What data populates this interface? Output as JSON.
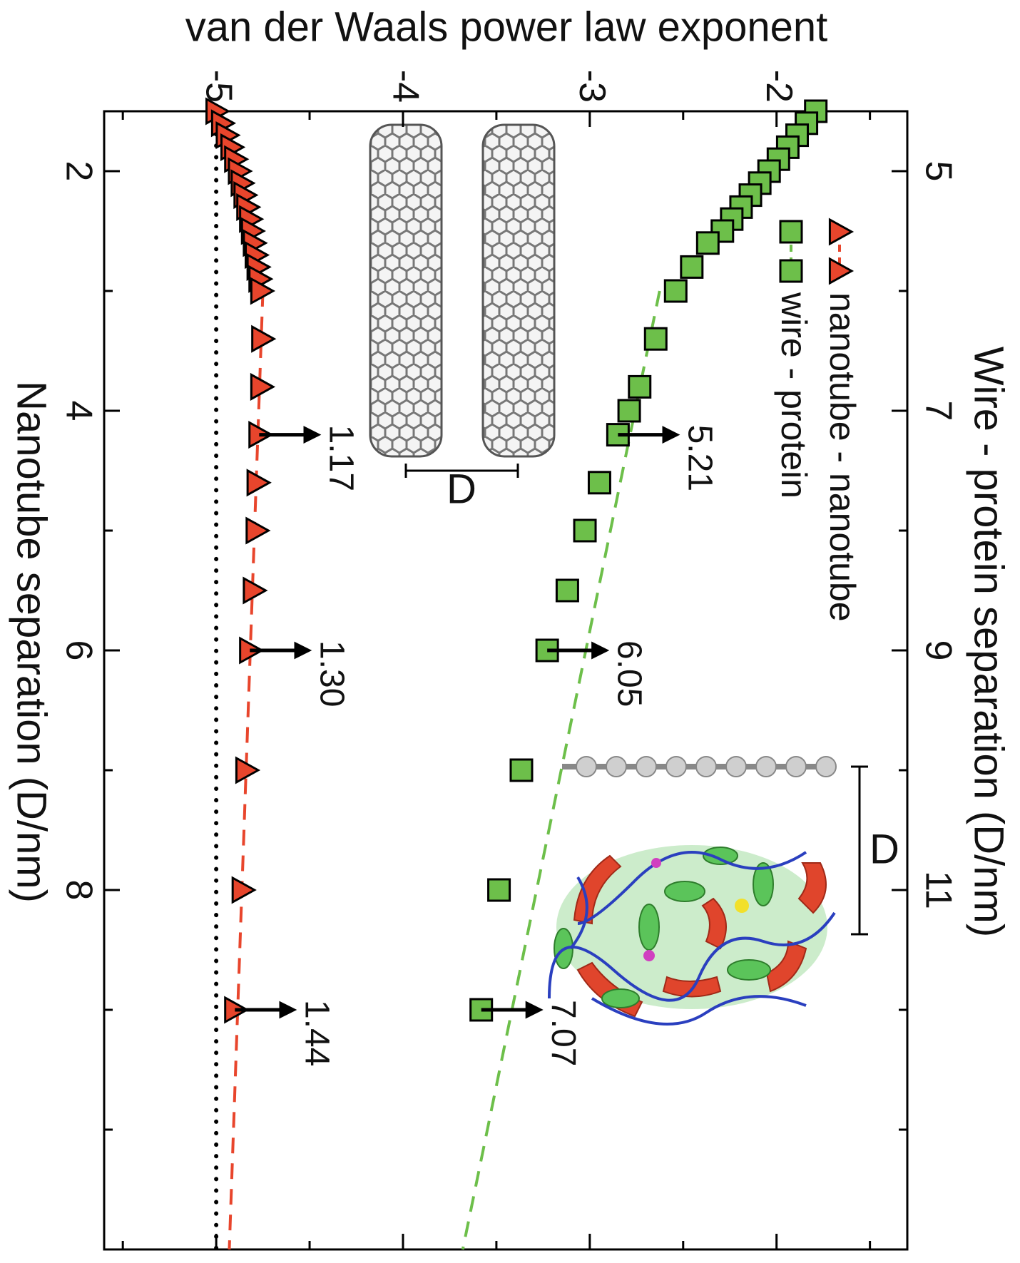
{
  "chart_data": {
    "type": "scatter",
    "ylabel": "van der Waals power law exponent",
    "xlabel": "Nanotube separation (D/nm)",
    "x2label": "Wire - protein separation (D/nm)",
    "xlim": [
      1.5,
      11
    ],
    "xticks": [
      2,
      4,
      6,
      8
    ],
    "xminorticks": [
      3,
      5,
      7,
      9,
      10
    ],
    "x2lim": [
      4.5,
      14
    ],
    "x2ticks": [
      5,
      7,
      9,
      11
    ],
    "x2minorticks": [
      6,
      8,
      10,
      12,
      13
    ],
    "ylim": [
      -5.6,
      -1.3
    ],
    "yticks": [
      -5,
      -4,
      -3,
      -2
    ],
    "yminorticks": [
      -5.5,
      -4.5,
      -3.5,
      -2.5,
      -1.5
    ],
    "legend": "upper left",
    "series": [
      {
        "name": "nanotube - nanotube",
        "color": "#e8452c",
        "marker": "triangle",
        "x": [
          1.5,
          1.6,
          1.7,
          1.8,
          1.9,
          2.0,
          2.1,
          2.2,
          2.3,
          2.4,
          2.5,
          2.6,
          2.7,
          2.8,
          2.9,
          3.0,
          3.4,
          3.8,
          4.2,
          4.6,
          5.0,
          5.5,
          6.0,
          7.0,
          8.0,
          9.0
        ],
        "values": [
          -5.0,
          -4.97,
          -4.945,
          -4.92,
          -4.9,
          -4.88,
          -4.865,
          -4.85,
          -4.835,
          -4.82,
          -4.81,
          -4.8,
          -4.79,
          -4.78,
          -4.77,
          -4.76,
          -4.755,
          -4.76,
          -4.77,
          -4.78,
          -4.785,
          -4.8,
          -4.82,
          -4.84,
          -4.86,
          -4.9
        ]
      },
      {
        "name": "wire - protein",
        "color": "#6dbf4a",
        "marker": "square",
        "axis": "x2",
        "x": [
          4.5,
          4.6,
          4.7,
          4.8,
          4.9,
          5.0,
          5.1,
          5.2,
          5.3,
          5.4,
          5.5,
          5.6,
          5.8,
          6.0,
          6.4,
          6.8,
          7.0,
          7.2,
          7.6,
          8.0,
          8.5,
          9.0,
          10,
          11,
          12
        ],
        "values": [
          -1.79,
          -1.84,
          -1.89,
          -1.94,
          -1.99,
          -2.04,
          -2.09,
          -2.14,
          -2.19,
          -2.24,
          -2.29,
          -2.368,
          -2.454,
          -2.54,
          -2.647,
          -2.733,
          -2.789,
          -2.849,
          -2.948,
          -3.026,
          -3.12,
          -3.228,
          -3.366,
          -3.486,
          -3.581
        ]
      }
    ],
    "fits": [
      {
        "color": "#e8452c",
        "x": [
          3,
          11
        ],
        "values": [
          -4.75,
          -4.93
        ]
      },
      {
        "color": "#6dbf4a",
        "axis": "x2",
        "x": [
          6,
          14
        ],
        "values": [
          -2.626,
          -3.68
        ]
      }
    ],
    "reference_line": -5,
    "annotations": [
      {
        "text": "1.17",
        "x": 4.2,
        "y": -4.77
      },
      {
        "text": "1.30",
        "x": 6.0,
        "y": -4.82
      },
      {
        "text": "1.44",
        "x": 9.0,
        "y": -4.9
      },
      {
        "text": "5.21",
        "axis": "x2",
        "x": 7.2,
        "y": -2.849
      },
      {
        "text": "6.05",
        "axis": "x2",
        "x": 9.0,
        "y": -3.228
      },
      {
        "text": "7.07",
        "axis": "x2",
        "x": 12,
        "y": -3.581
      }
    ],
    "inset_labels": [
      "D",
      "D"
    ]
  }
}
